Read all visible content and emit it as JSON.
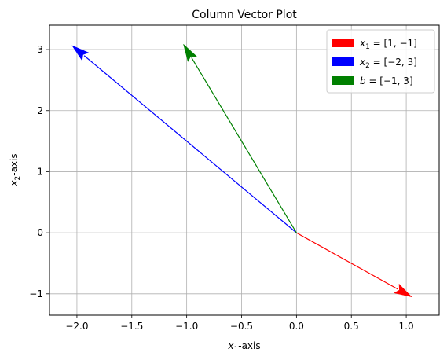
{
  "chart_data": {
    "type": "line",
    "title": "Column Vector Plot",
    "xlabel": {
      "var": "x",
      "sub": "1",
      "suffix": "-axis"
    },
    "ylabel": {
      "var": "x",
      "sub": "2",
      "suffix": "-axis"
    },
    "xlim": [
      -2.25,
      1.3
    ],
    "ylim": [
      -1.35,
      3.4
    ],
    "xticks": [
      -2.0,
      -1.5,
      -1.0,
      -0.5,
      0.0,
      0.5,
      1.0
    ],
    "xtick_labels": [
      "−2.0",
      "−1.5",
      "−1.0",
      "−0.5",
      "0.0",
      "0.5",
      "1.0"
    ],
    "yticks": [
      -1,
      0,
      1,
      2,
      3
    ],
    "ytick_labels": [
      "−1",
      "0",
      "1",
      "2",
      "3"
    ],
    "grid": true,
    "legend_position": "top-right",
    "series": [
      {
        "name": "x1 = [1, −1]",
        "legend": {
          "var": "x",
          "sub": "1",
          "rest": " = [1, −1]"
        },
        "origin": [
          0,
          0
        ],
        "vector": [
          1,
          -1
        ],
        "color": "#ff0000"
      },
      {
        "name": "x2 = [−2, 3]",
        "legend": {
          "var": "x",
          "sub": "2",
          "rest": " = [−2, 3]"
        },
        "origin": [
          0,
          0
        ],
        "vector": [
          -2,
          3
        ],
        "color": "#0000ff"
      },
      {
        "name": "b = [−1, 3]",
        "legend": {
          "var": "b",
          "sub": "",
          "rest": " = [−1, 3]"
        },
        "origin": [
          0,
          0
        ],
        "vector": [
          -1,
          3
        ],
        "color": "#008000"
      }
    ]
  }
}
